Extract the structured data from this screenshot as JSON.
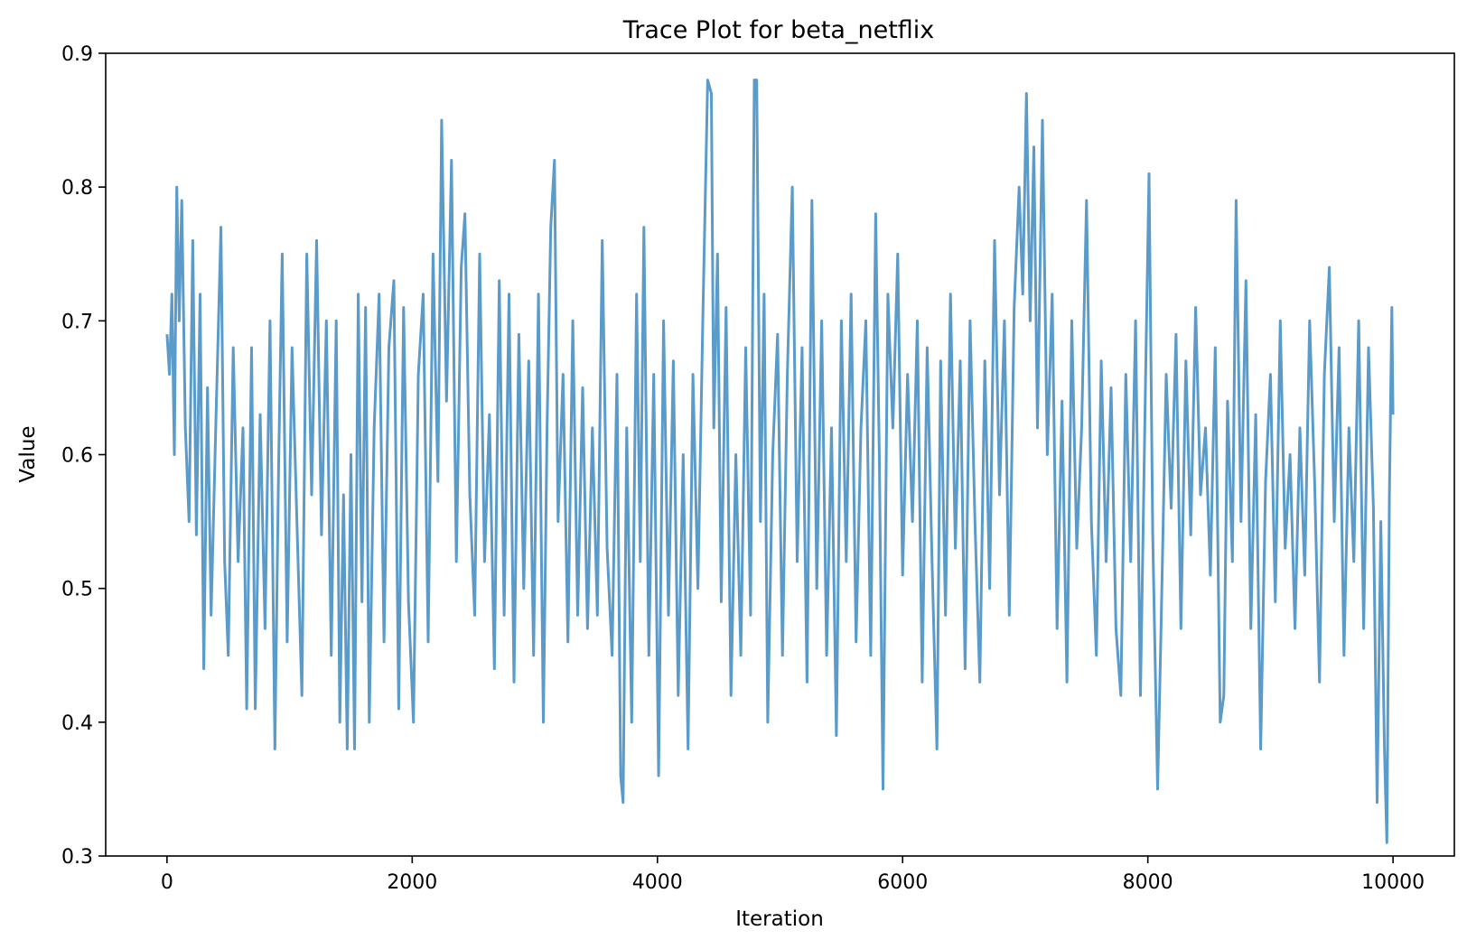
{
  "chart_data": {
    "type": "line",
    "title": "Trace Plot for beta_netflix",
    "xlabel": "Iteration",
    "ylabel": "Value",
    "xlim": [
      -500,
      10500
    ],
    "ylim": [
      0.3,
      0.9
    ],
    "x_ticks": [
      0,
      2000,
      4000,
      6000,
      8000,
      10000
    ],
    "x_tick_labels": [
      "0",
      "2000",
      "4000",
      "6000",
      "8000",
      "10000"
    ],
    "y_ticks": [
      0.3,
      0.4,
      0.5,
      0.6,
      0.7,
      0.8,
      0.9
    ],
    "y_tick_labels": [
      "0.3",
      "0.4",
      "0.5",
      "0.6",
      "0.7",
      "0.8",
      "0.9"
    ],
    "grid": false,
    "legend": false,
    "series": [
      {
        "color": "#5b9bc9",
        "points": [
          [
            0,
            0.69
          ],
          [
            20,
            0.66
          ],
          [
            40,
            0.72
          ],
          [
            60,
            0.6
          ],
          [
            80,
            0.8
          ],
          [
            100,
            0.7
          ],
          [
            120,
            0.79
          ],
          [
            150,
            0.62
          ],
          [
            180,
            0.55
          ],
          [
            210,
            0.76
          ],
          [
            240,
            0.54
          ],
          [
            270,
            0.72
          ],
          [
            300,
            0.44
          ],
          [
            330,
            0.65
          ],
          [
            360,
            0.48
          ],
          [
            400,
            0.63
          ],
          [
            440,
            0.77
          ],
          [
            470,
            0.52
          ],
          [
            500,
            0.45
          ],
          [
            540,
            0.68
          ],
          [
            580,
            0.52
          ],
          [
            620,
            0.62
          ],
          [
            650,
            0.41
          ],
          [
            690,
            0.68
          ],
          [
            720,
            0.41
          ],
          [
            760,
            0.63
          ],
          [
            800,
            0.47
          ],
          [
            840,
            0.7
          ],
          [
            880,
            0.38
          ],
          [
            910,
            0.59
          ],
          [
            940,
            0.75
          ],
          [
            980,
            0.46
          ],
          [
            1020,
            0.68
          ],
          [
            1060,
            0.55
          ],
          [
            1100,
            0.42
          ],
          [
            1140,
            0.75
          ],
          [
            1180,
            0.57
          ],
          [
            1220,
            0.76
          ],
          [
            1260,
            0.54
          ],
          [
            1300,
            0.7
          ],
          [
            1340,
            0.45
          ],
          [
            1380,
            0.7
          ],
          [
            1410,
            0.4
          ],
          [
            1440,
            0.57
          ],
          [
            1470,
            0.38
          ],
          [
            1500,
            0.6
          ],
          [
            1530,
            0.38
          ],
          [
            1560,
            0.72
          ],
          [
            1590,
            0.49
          ],
          [
            1620,
            0.71
          ],
          [
            1650,
            0.4
          ],
          [
            1690,
            0.62
          ],
          [
            1730,
            0.72
          ],
          [
            1770,
            0.46
          ],
          [
            1810,
            0.68
          ],
          [
            1850,
            0.73
          ],
          [
            1890,
            0.41
          ],
          [
            1930,
            0.71
          ],
          [
            1970,
            0.49
          ],
          [
            2010,
            0.4
          ],
          [
            2050,
            0.66
          ],
          [
            2090,
            0.72
          ],
          [
            2130,
            0.46
          ],
          [
            2170,
            0.75
          ],
          [
            2210,
            0.58
          ],
          [
            2240,
            0.85
          ],
          [
            2280,
            0.64
          ],
          [
            2320,
            0.82
          ],
          [
            2360,
            0.52
          ],
          [
            2400,
            0.74
          ],
          [
            2430,
            0.78
          ],
          [
            2470,
            0.57
          ],
          [
            2510,
            0.48
          ],
          [
            2550,
            0.75
          ],
          [
            2590,
            0.52
          ],
          [
            2630,
            0.63
          ],
          [
            2670,
            0.44
          ],
          [
            2710,
            0.73
          ],
          [
            2750,
            0.48
          ],
          [
            2790,
            0.72
          ],
          [
            2830,
            0.43
          ],
          [
            2870,
            0.69
          ],
          [
            2910,
            0.5
          ],
          [
            2950,
            0.67
          ],
          [
            2990,
            0.45
          ],
          [
            3030,
            0.72
          ],
          [
            3070,
            0.4
          ],
          [
            3100,
            0.62
          ],
          [
            3130,
            0.77
          ],
          [
            3160,
            0.82
          ],
          [
            3190,
            0.55
          ],
          [
            3230,
            0.66
          ],
          [
            3270,
            0.46
          ],
          [
            3310,
            0.7
          ],
          [
            3350,
            0.48
          ],
          [
            3390,
            0.65
          ],
          [
            3430,
            0.47
          ],
          [
            3470,
            0.62
          ],
          [
            3510,
            0.48
          ],
          [
            3550,
            0.76
          ],
          [
            3590,
            0.53
          ],
          [
            3630,
            0.45
          ],
          [
            3670,
            0.66
          ],
          [
            3700,
            0.36
          ],
          [
            3720,
            0.34
          ],
          [
            3750,
            0.62
          ],
          [
            3790,
            0.4
          ],
          [
            3830,
            0.72
          ],
          [
            3860,
            0.52
          ],
          [
            3890,
            0.77
          ],
          [
            3930,
            0.45
          ],
          [
            3970,
            0.66
          ],
          [
            4010,
            0.36
          ],
          [
            4050,
            0.7
          ],
          [
            4090,
            0.48
          ],
          [
            4130,
            0.67
          ],
          [
            4170,
            0.42
          ],
          [
            4210,
            0.6
          ],
          [
            4250,
            0.38
          ],
          [
            4290,
            0.66
          ],
          [
            4330,
            0.5
          ],
          [
            4370,
            0.7
          ],
          [
            4410,
            0.88
          ],
          [
            4440,
            0.87
          ],
          [
            4460,
            0.62
          ],
          [
            4490,
            0.75
          ],
          [
            4520,
            0.49
          ],
          [
            4560,
            0.71
          ],
          [
            4600,
            0.42
          ],
          [
            4640,
            0.6
          ],
          [
            4680,
            0.45
          ],
          [
            4720,
            0.68
          ],
          [
            4760,
            0.48
          ],
          [
            4790,
            0.88
          ],
          [
            4810,
            0.88
          ],
          [
            4840,
            0.55
          ],
          [
            4870,
            0.72
          ],
          [
            4900,
            0.4
          ],
          [
            4940,
            0.6
          ],
          [
            4980,
            0.69
          ],
          [
            5020,
            0.45
          ],
          [
            5060,
            0.66
          ],
          [
            5100,
            0.8
          ],
          [
            5140,
            0.52
          ],
          [
            5180,
            0.68
          ],
          [
            5220,
            0.43
          ],
          [
            5260,
            0.79
          ],
          [
            5300,
            0.5
          ],
          [
            5340,
            0.7
          ],
          [
            5380,
            0.45
          ],
          [
            5420,
            0.62
          ],
          [
            5460,
            0.39
          ],
          [
            5500,
            0.7
          ],
          [
            5540,
            0.52
          ],
          [
            5580,
            0.72
          ],
          [
            5620,
            0.46
          ],
          [
            5660,
            0.62
          ],
          [
            5700,
            0.7
          ],
          [
            5740,
            0.45
          ],
          [
            5780,
            0.78
          ],
          [
            5810,
            0.6
          ],
          [
            5840,
            0.35
          ],
          [
            5880,
            0.72
          ],
          [
            5920,
            0.62
          ],
          [
            5960,
            0.75
          ],
          [
            6000,
            0.51
          ],
          [
            6040,
            0.66
          ],
          [
            6080,
            0.55
          ],
          [
            6120,
            0.7
          ],
          [
            6160,
            0.43
          ],
          [
            6200,
            0.68
          ],
          [
            6240,
            0.52
          ],
          [
            6280,
            0.38
          ],
          [
            6310,
            0.67
          ],
          [
            6350,
            0.48
          ],
          [
            6390,
            0.72
          ],
          [
            6430,
            0.53
          ],
          [
            6470,
            0.67
          ],
          [
            6510,
            0.44
          ],
          [
            6550,
            0.7
          ],
          [
            6590,
            0.55
          ],
          [
            6630,
            0.43
          ],
          [
            6670,
            0.67
          ],
          [
            6710,
            0.5
          ],
          [
            6750,
            0.76
          ],
          [
            6790,
            0.57
          ],
          [
            6830,
            0.7
          ],
          [
            6870,
            0.48
          ],
          [
            6910,
            0.71
          ],
          [
            6950,
            0.8
          ],
          [
            6980,
            0.72
          ],
          [
            7010,
            0.87
          ],
          [
            7040,
            0.7
          ],
          [
            7070,
            0.83
          ],
          [
            7100,
            0.62
          ],
          [
            7140,
            0.85
          ],
          [
            7180,
            0.6
          ],
          [
            7220,
            0.72
          ],
          [
            7260,
            0.47
          ],
          [
            7300,
            0.64
          ],
          [
            7340,
            0.43
          ],
          [
            7380,
            0.7
          ],
          [
            7420,
            0.53
          ],
          [
            7460,
            0.62
          ],
          [
            7500,
            0.79
          ],
          [
            7540,
            0.55
          ],
          [
            7580,
            0.45
          ],
          [
            7620,
            0.67
          ],
          [
            7660,
            0.52
          ],
          [
            7700,
            0.65
          ],
          [
            7740,
            0.47
          ],
          [
            7780,
            0.42
          ],
          [
            7820,
            0.66
          ],
          [
            7860,
            0.52
          ],
          [
            7900,
            0.7
          ],
          [
            7940,
            0.42
          ],
          [
            7980,
            0.65
          ],
          [
            8010,
            0.81
          ],
          [
            8040,
            0.54
          ],
          [
            8080,
            0.35
          ],
          [
            8110,
            0.48
          ],
          [
            8150,
            0.66
          ],
          [
            8190,
            0.56
          ],
          [
            8230,
            0.69
          ],
          [
            8270,
            0.47
          ],
          [
            8310,
            0.67
          ],
          [
            8350,
            0.54
          ],
          [
            8390,
            0.71
          ],
          [
            8430,
            0.57
          ],
          [
            8470,
            0.62
          ],
          [
            8510,
            0.51
          ],
          [
            8550,
            0.68
          ],
          [
            8590,
            0.4
          ],
          [
            8620,
            0.42
          ],
          [
            8650,
            0.64
          ],
          [
            8690,
            0.52
          ],
          [
            8720,
            0.79
          ],
          [
            8760,
            0.55
          ],
          [
            8800,
            0.73
          ],
          [
            8840,
            0.47
          ],
          [
            8880,
            0.63
          ],
          [
            8920,
            0.38
          ],
          [
            8960,
            0.58
          ],
          [
            9000,
            0.66
          ],
          [
            9040,
            0.49
          ],
          [
            9080,
            0.7
          ],
          [
            9120,
            0.53
          ],
          [
            9160,
            0.6
          ],
          [
            9200,
            0.47
          ],
          [
            9240,
            0.62
          ],
          [
            9280,
            0.51
          ],
          [
            9320,
            0.7
          ],
          [
            9360,
            0.58
          ],
          [
            9400,
            0.43
          ],
          [
            9440,
            0.66
          ],
          [
            9480,
            0.74
          ],
          [
            9520,
            0.55
          ],
          [
            9560,
            0.68
          ],
          [
            9600,
            0.45
          ],
          [
            9640,
            0.62
          ],
          [
            9680,
            0.52
          ],
          [
            9720,
            0.7
          ],
          [
            9760,
            0.47
          ],
          [
            9800,
            0.68
          ],
          [
            9840,
            0.56
          ],
          [
            9870,
            0.34
          ],
          [
            9900,
            0.55
          ],
          [
            9930,
            0.38
          ],
          [
            9950,
            0.31
          ],
          [
            9970,
            0.57
          ],
          [
            9990,
            0.71
          ],
          [
            10000,
            0.63
          ]
        ]
      }
    ]
  }
}
